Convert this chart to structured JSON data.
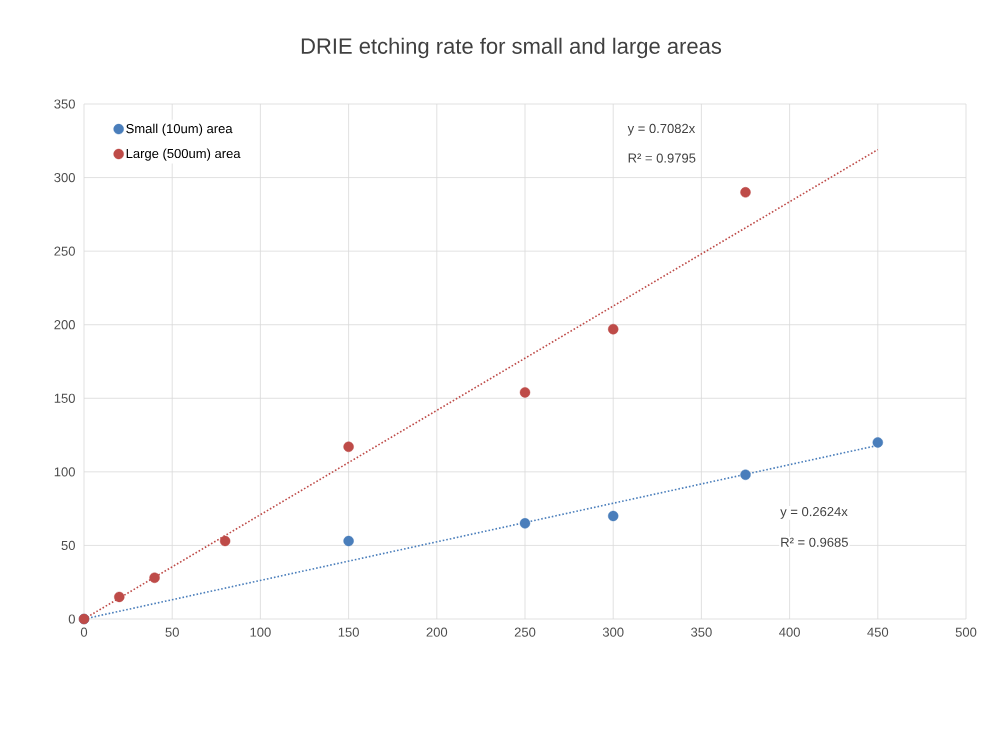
{
  "chart_data": {
    "type": "scatter",
    "title": "DRIE etching rate for small and large areas",
    "series": [
      {
        "name": "Small (10um) area",
        "marker": "circle",
        "color": "#4a7ebb",
        "x": [
          0,
          150,
          250,
          300,
          375,
          450
        ],
        "values": [
          0,
          53,
          65,
          70,
          98,
          120
        ]
      },
      {
        "name": "Large (500um) area",
        "marker": "circle",
        "color": "#be4b48",
        "x": [
          0,
          20,
          40,
          80,
          150,
          250,
          300,
          375
        ],
        "values": [
          0,
          15,
          28,
          53,
          117,
          154,
          197,
          290
        ]
      },
      {
        "type": "line",
        "line_style": "dotted",
        "marker": "none",
        "color": "#4a7ebb",
        "x": [
          0,
          450
        ],
        "values": [
          0,
          118
        ]
      },
      {
        "type": "line",
        "line_style": "dotted",
        "marker": "none",
        "color": "#be4b48",
        "x": [
          0,
          450
        ],
        "values": [
          0,
          319
        ]
      }
    ],
    "annotations": [
      "y = 0.7082x",
      "R² = 0.9795",
      "y = 0.2624x",
      "R² = 0.9685"
    ],
    "xlim": [
      0,
      500
    ],
    "ylim": [
      0,
      350
    ],
    "xticks": [
      0,
      50,
      100,
      150,
      200,
      250,
      300,
      350,
      400,
      450,
      500
    ],
    "yticks": [
      0,
      50,
      100,
      150,
      200,
      250,
      300,
      350
    ],
    "grid": true,
    "legend": "top left"
  }
}
